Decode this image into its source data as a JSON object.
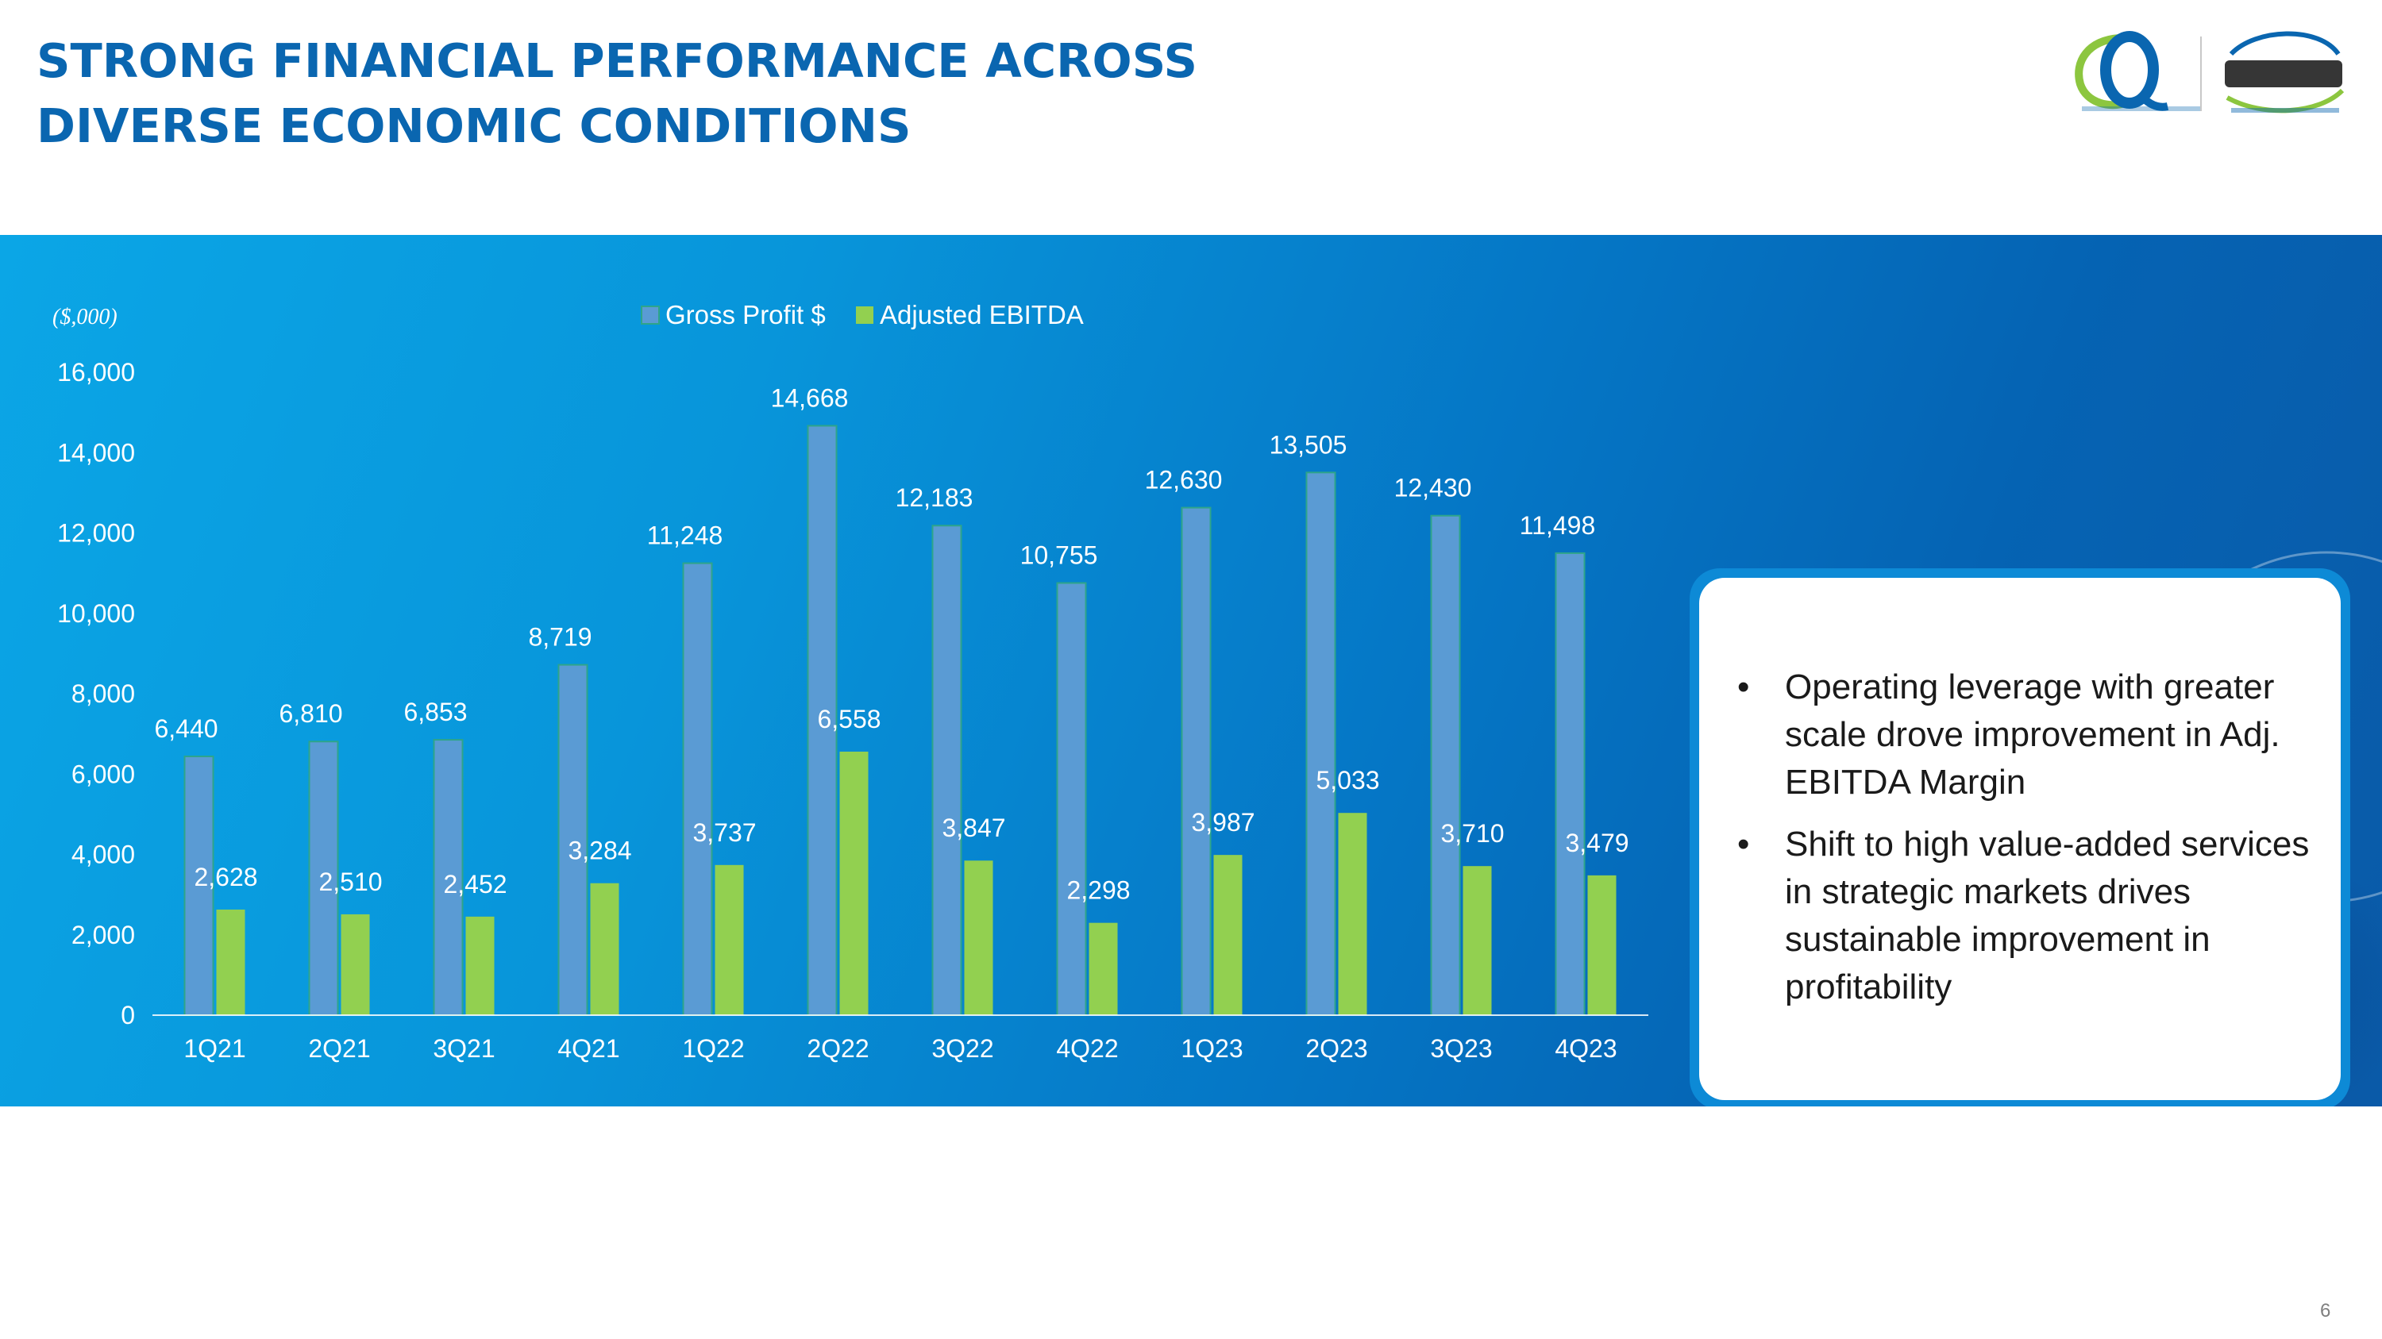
{
  "page": {
    "title_line1": "STRONG FINANCIAL PERFORMANCE ACROSS",
    "title_line2": "DIVERSE ECONOMIC CONDITIONS",
    "page_number": "6"
  },
  "callout": {
    "bullets": [
      "Operating leverage with greater scale drove improvement in Adj. EBITDA Margin",
      "Shift to high value-added services in strategic markets drives sustainable improvement in profitability"
    ]
  },
  "colors": {
    "title": "#0a66b0",
    "gross_profit": "#5a9bd4",
    "ebitda": "#92d050",
    "axis_text": "#ffffff"
  },
  "chart_data": {
    "type": "bar",
    "unit_label": "($,000)",
    "categories": [
      "1Q21",
      "2Q21",
      "3Q21",
      "4Q21",
      "1Q22",
      "2Q22",
      "3Q22",
      "4Q22",
      "1Q23",
      "2Q23",
      "3Q23",
      "4Q23"
    ],
    "series": [
      {
        "name": "Gross Profit $",
        "values": [
          6440,
          6810,
          6853,
          8719,
          11248,
          14668,
          12183,
          10755,
          12630,
          13505,
          12430,
          11498
        ],
        "labels": [
          "6,440",
          "6,810",
          "6,853",
          "8,719",
          "11,248",
          "14,668",
          "12,183",
          "10,755",
          "12,630",
          "13,505",
          "12,430",
          "11,498"
        ]
      },
      {
        "name": "Adjusted EBITDA",
        "values": [
          2628,
          2510,
          2452,
          3284,
          3737,
          6558,
          3847,
          2298,
          3987,
          5033,
          3710,
          3479
        ],
        "labels": [
          "2,628",
          "2,510",
          "2,452",
          "3,284",
          "3,737",
          "6,558",
          "3,847",
          "2,298",
          "3,987",
          "5,033",
          "3,710",
          "3,479"
        ]
      }
    ],
    "ylim": [
      0,
      16000
    ],
    "yticks": [
      0,
      2000,
      4000,
      6000,
      8000,
      10000,
      12000,
      14000,
      16000
    ],
    "ytick_labels": [
      "0",
      "2,000",
      "4,000",
      "6,000",
      "8,000",
      "10,000",
      "12,000",
      "14,000",
      "16,000"
    ],
    "legend_position": "top-center",
    "grid": false
  }
}
